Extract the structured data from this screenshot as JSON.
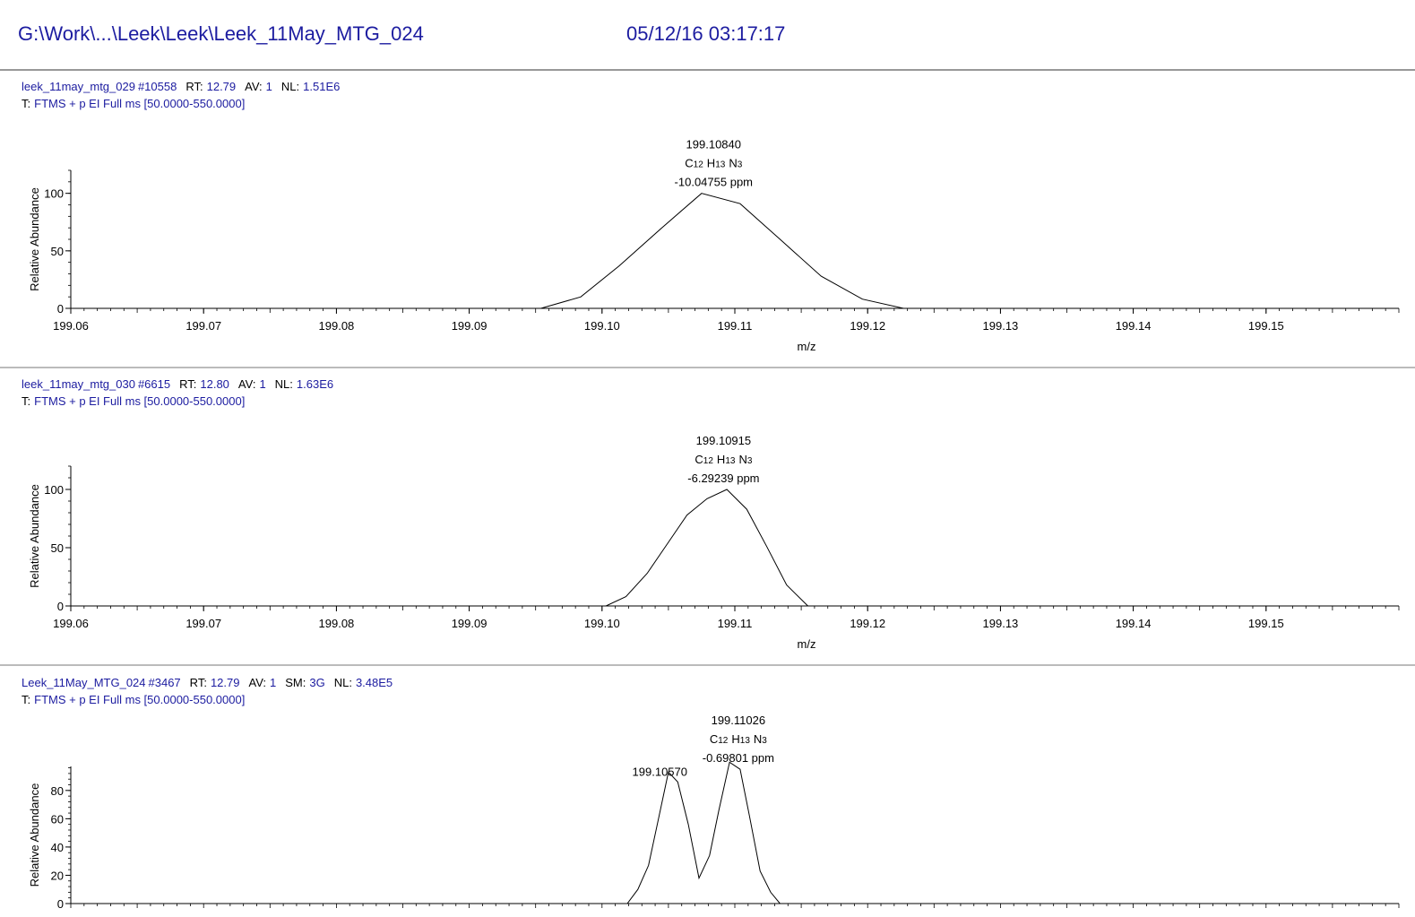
{
  "header": {
    "path": "G:\\Work\\...\\Leek\\Leek\\Leek_11May_MTG_024",
    "datetime": "05/12/16 03:17:17"
  },
  "chart_data": [
    {
      "type": "line",
      "file": "leek_11may_mtg_029",
      "scan": "#10558",
      "scan_info": [
        [
          "RT:",
          "12.79"
        ],
        [
          "AV:",
          "1"
        ],
        [
          "NL:",
          "1.51E6"
        ]
      ],
      "filter": [
        "T:",
        "FTMS + p EI Full ms [50.0000-550.0000]"
      ],
      "ylabel": "Relative Abundance",
      "xlabel": "m/z",
      "xlim": [
        199.06,
        199.16
      ],
      "xticks": [
        199.06,
        199.07,
        199.08,
        199.09,
        {
          "value": 199.1,
          "label": "199.10"
        },
        199.11,
        199.12,
        199.13,
        199.14,
        199.15
      ],
      "ylim": [
        0,
        120
      ],
      "yticks": [
        0,
        50,
        100
      ],
      "color": "#000000",
      "x": [
        199.06,
        199.0954,
        199.0984,
        199.1013,
        199.1045,
        199.1075,
        199.1104,
        199.1135,
        199.1165,
        199.1196,
        199.1227,
        199.16
      ],
      "values": [
        0,
        0,
        10,
        37,
        70,
        100,
        91,
        59,
        28,
        8,
        0,
        0
      ],
      "annotations": [
        {
          "x": 199.1084,
          "label": "199.10840",
          "formula": [
            [
              "C",
              "12"
            ],
            [
              "H",
              "13"
            ],
            [
              "N",
              "3"
            ]
          ],
          "ppm": "-10.04755 ppm"
        }
      ]
    },
    {
      "type": "line",
      "file": "leek_11may_mtg_030",
      "scan": "#6615",
      "scan_info": [
        [
          "RT:",
          "12.80"
        ],
        [
          "AV:",
          "1"
        ],
        [
          "NL:",
          "1.63E6"
        ]
      ],
      "filter": [
        "T:",
        "FTMS + p EI Full ms [50.0000-550.0000]"
      ],
      "ylabel": "Relative Abundance",
      "xlabel": "m/z",
      "xlim": [
        199.06,
        199.16
      ],
      "xticks": [
        199.06,
        199.07,
        199.08,
        199.09,
        {
          "value": 199.1,
          "label": "199.10"
        },
        199.11,
        199.12,
        199.13,
        199.14,
        199.15
      ],
      "ylim": [
        0,
        120
      ],
      "yticks": [
        0,
        50,
        100
      ],
      "color": "#000000",
      "x": [
        199.06,
        199.1003,
        199.1018,
        199.1034,
        199.1049,
        199.1064,
        199.1079,
        199.1094,
        199.1109,
        199.1124,
        199.1139,
        199.1155,
        199.16
      ],
      "values": [
        0,
        0,
        8,
        28,
        53,
        78,
        92,
        100,
        83,
        51,
        18,
        0,
        0
      ],
      "annotations": [
        {
          "x": 199.10915,
          "label": "199.10915",
          "formula": [
            [
              "C",
              "12"
            ],
            [
              "H",
              "13"
            ],
            [
              "N",
              "3"
            ]
          ],
          "ppm": "-6.29239 ppm"
        }
      ]
    },
    {
      "type": "line",
      "file": "Leek_11May_MTG_024",
      "scan": "#3467",
      "scan_info": [
        [
          "RT:",
          "12.79"
        ],
        [
          "AV:",
          "1"
        ],
        [
          "SM:",
          "3G"
        ],
        [
          "NL:",
          "3.48E5"
        ]
      ],
      "filter": [
        "T:",
        "FTMS + p EI Full ms [50.0000-550.0000]"
      ],
      "ylabel": "Relative Abundance",
      "xlim": [
        199.06,
        199.16
      ],
      "ylim": [
        0,
        97
      ],
      "yticks": [
        0,
        20,
        40,
        60,
        80
      ],
      "color": "#000000",
      "x": [
        199.06,
        199.1019,
        199.1027,
        199.1035,
        199.1043,
        199.105,
        199.1057,
        199.1065,
        199.1073,
        199.1081,
        199.1088,
        199.1096,
        199.1104,
        199.1111,
        199.1119,
        199.1127,
        199.1134,
        199.16
      ],
      "values": [
        0,
        0,
        10,
        27,
        62,
        93,
        86,
        56,
        18,
        34,
        66,
        100,
        95,
        62,
        23,
        8,
        0,
        0
      ],
      "annotations": [
        {
          "x": 199.1057,
          "label": "199.10570"
        },
        {
          "x": 199.11026,
          "label": "199.11026",
          "formula": [
            [
              "C",
              "12"
            ],
            [
              "H",
              "13"
            ],
            [
              "N",
              "3"
            ]
          ],
          "ppm": "-0.69801 ppm"
        }
      ]
    }
  ]
}
